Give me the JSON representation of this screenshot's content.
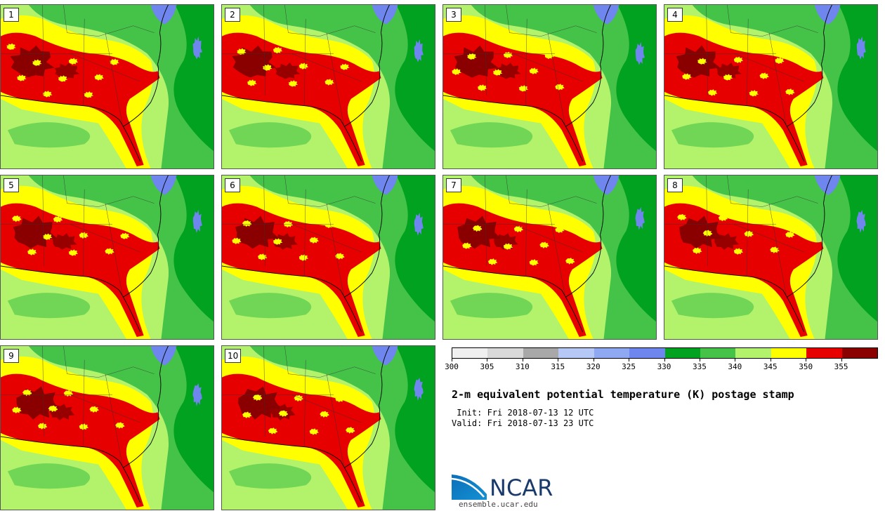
{
  "panels": [
    {
      "label": "1"
    },
    {
      "label": "2"
    },
    {
      "label": "3"
    },
    {
      "label": "4"
    },
    {
      "label": "5"
    },
    {
      "label": "6"
    },
    {
      "label": "7"
    },
    {
      "label": "8"
    },
    {
      "label": "9"
    },
    {
      "label": "10"
    }
  ],
  "colorbar": {
    "bins": [
      {
        "from": 300,
        "to": 305,
        "color": "#f0f0f0"
      },
      {
        "from": 305,
        "to": 310,
        "color": "#d9d9d9"
      },
      {
        "from": 310,
        "to": 315,
        "color": "#a8a8a8"
      },
      {
        "from": 315,
        "to": 320,
        "color": "#b6c8f6"
      },
      {
        "from": 320,
        "to": 325,
        "color": "#8ea8f2"
      },
      {
        "from": 325,
        "to": 330,
        "color": "#6e86ee"
      },
      {
        "from": 330,
        "to": 335,
        "color": "#00a21f"
      },
      {
        "from": 335,
        "to": 340,
        "color": "#45c248"
      },
      {
        "from": 340,
        "to": 345,
        "color": "#b3f36b"
      },
      {
        "from": 345,
        "to": 350,
        "color": "#ffff00"
      },
      {
        "from": 350,
        "to": 355,
        "color": "#e60000"
      },
      {
        "from": 355,
        "to": 360,
        "color": "#8a0000"
      }
    ],
    "tick_labels": [
      "300",
      "305",
      "310",
      "315",
      "320",
      "325",
      "330",
      "335",
      "340",
      "345",
      "350",
      "355"
    ]
  },
  "title": "2-m equivalent potential temperature (K) postage stamp",
  "init_time": " Init: Fri 2018-07-13 12 UTC",
  "valid_time": "Valid: Fri 2018-07-13 23 UTC",
  "logo_text": "NCAR",
  "site": "ensemble.ucar.edu",
  "colors": {
    "ocean_green": "#45c248",
    "deep_green": "#00a21f",
    "light_green": "#b3f36b",
    "yellow": "#ffff00",
    "red": "#e60000",
    "dark_red": "#8a0000",
    "blue": "#6e86ee"
  }
}
